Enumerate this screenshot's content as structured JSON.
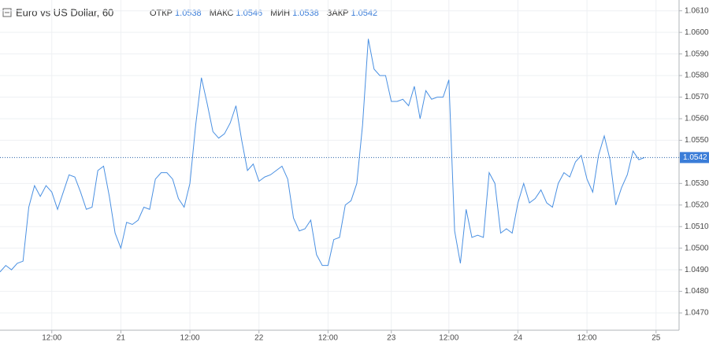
{
  "chart_data": {
    "type": "line",
    "title": "Euro vs US Dollar, 60",
    "ohlc": [
      {
        "label": "ОТКР",
        "value": 1.0538
      },
      {
        "label": "МАКС",
        "value": 1.0546
      },
      {
        "label": "МИН",
        "value": 1.0538
      },
      {
        "label": "ЗАКР",
        "value": 1.0542
      }
    ],
    "last_price": 1.0542,
    "x": [
      0,
      1,
      2,
      3,
      4,
      5,
      6,
      7,
      8,
      9,
      10,
      11,
      12,
      13,
      14,
      15,
      16,
      17,
      18,
      19,
      20,
      21,
      22,
      23,
      24,
      25,
      26,
      27,
      28,
      29,
      30,
      31,
      32,
      33,
      34,
      35,
      36,
      37,
      38,
      39,
      40,
      41,
      42,
      43,
      44,
      45,
      46,
      47,
      48,
      49,
      50,
      51,
      52,
      53,
      54,
      55,
      56,
      57,
      58,
      59,
      60,
      61,
      62,
      63,
      64,
      65,
      66,
      67,
      68,
      69,
      70,
      71,
      72,
      73,
      74,
      75,
      76,
      77,
      78,
      79,
      80,
      81,
      82,
      83,
      84,
      85,
      86,
      87,
      88,
      89,
      90,
      91,
      92,
      93,
      94,
      95,
      96,
      97,
      98,
      99,
      100,
      101,
      102,
      103,
      104,
      105,
      106,
      107,
      108,
      109,
      110,
      111,
      112
    ],
    "series": [
      {
        "name": "EURUSD",
        "color": "#4a90e2",
        "values": [
          1.0489,
          1.0492,
          1.049,
          1.0493,
          1.0494,
          1.0519,
          1.0529,
          1.0524,
          1.0529,
          1.0526,
          1.0518,
          1.0526,
          1.0534,
          1.0533,
          1.0526,
          1.0518,
          1.0519,
          1.0536,
          1.0538,
          1.0524,
          1.0507,
          1.05,
          1.0512,
          1.0511,
          1.0513,
          1.0519,
          1.0518,
          1.0532,
          1.0535,
          1.0535,
          1.0532,
          1.0523,
          1.0519,
          1.053,
          1.0557,
          1.0579,
          1.0567,
          1.0554,
          1.0551,
          1.0553,
          1.0558,
          1.0566,
          1.055,
          1.0536,
          1.0539,
          1.0531,
          1.0533,
          1.0534,
          1.0536,
          1.0538,
          1.0532,
          1.0514,
          1.0508,
          1.0509,
          1.0513,
          1.0497,
          1.0492,
          1.0492,
          1.0504,
          1.0505,
          1.052,
          1.0522,
          1.053,
          1.0557,
          1.0597,
          1.0583,
          1.058,
          1.058,
          1.0568,
          1.0568,
          1.0569,
          1.0566,
          1.0575,
          1.056,
          1.0573,
          1.0569,
          1.057,
          1.057,
          1.0578,
          1.0508,
          1.0493,
          1.0518,
          1.0505,
          1.0506,
          1.0505,
          1.0535,
          1.053,
          1.0507,
          1.0509,
          1.0507,
          1.0521,
          1.053,
          1.0521,
          1.0523,
          1.0527,
          1.0521,
          1.0519,
          1.053,
          1.0535,
          1.0533,
          1.054,
          1.0543,
          1.0532,
          1.0526,
          1.0543,
          1.0552,
          1.0541,
          1.052,
          1.0528,
          1.0534,
          1.0545,
          1.0541,
          1.0542
        ]
      }
    ],
    "xlim": [
      0,
      118
    ],
    "xticks": [
      {
        "value": 9,
        "label": "12:00"
      },
      {
        "value": 21,
        "label": "21"
      },
      {
        "value": 33,
        "label": "12:00"
      },
      {
        "value": 45,
        "label": "22"
      },
      {
        "value": 57,
        "label": "12:00"
      },
      {
        "value": 68,
        "label": "23"
      },
      {
        "value": 78,
        "label": "12:00"
      },
      {
        "value": 90,
        "label": "24"
      },
      {
        "value": 102,
        "label": "12:00"
      },
      {
        "value": 114,
        "label": "25"
      }
    ],
    "ylim": [
      1.0462,
      1.0615
    ],
    "yticks": [
      {
        "value": 1.061,
        "label": "1.0610"
      },
      {
        "value": 1.06,
        "label": "1.0600"
      },
      {
        "value": 1.059,
        "label": "1.0590"
      },
      {
        "value": 1.058,
        "label": "1.0580"
      },
      {
        "value": 1.057,
        "label": "1.0570"
      },
      {
        "value": 1.056,
        "label": "1.0560"
      },
      {
        "value": 1.055,
        "label": "1.0550"
      },
      {
        "value": 1.053,
        "label": "1.0530"
      },
      {
        "value": 1.052,
        "label": "1.0520"
      },
      {
        "value": 1.051,
        "label": "1.0510"
      },
      {
        "value": 1.05,
        "label": "1.0500"
      },
      {
        "value": 1.049,
        "label": "1.0490"
      },
      {
        "value": 1.048,
        "label": "1.0480"
      },
      {
        "value": 1.047,
        "label": "1.0470"
      }
    ],
    "grid": true
  }
}
